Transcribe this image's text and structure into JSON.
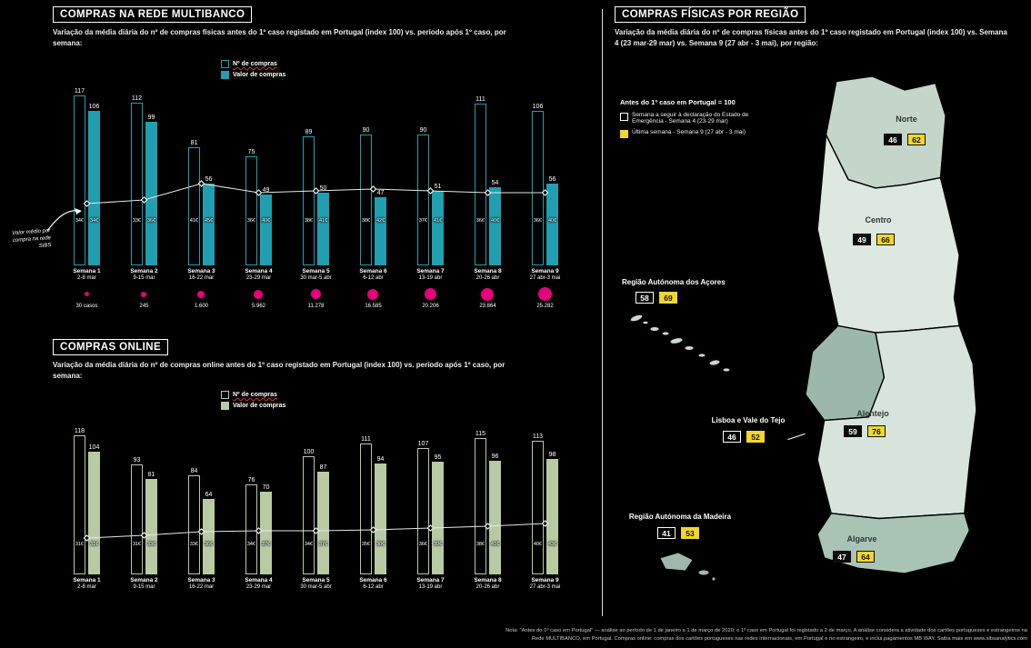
{
  "page": {
    "background": "#000000"
  },
  "colors": {
    "teal": "#1f9fb0",
    "sage": "#b8caa2",
    "yellow": "#f2d72b",
    "magenta": "#e5007d"
  },
  "chart_data": [
    {
      "id": "multibanco",
      "type": "bar",
      "title": "COMPRAS NA REDE MULTIBANCO",
      "subtitle": "Variação da média diária do nº de compras físicas antes do 1º caso registado em Portugal (index 100) vs. período após 1º caso, por semana:",
      "bar_color": "#1f9fb0",
      "ylim": [
        0,
        120
      ],
      "legend": [
        {
          "label": "Nº de compras",
          "style": "outline"
        },
        {
          "label": "Valor de compras",
          "style": "solid"
        }
      ],
      "categories": [
        "Semana 1|2-8 mar",
        "Semana 2|9-15 mar",
        "Semana 3|16-22 mar",
        "Semana 4|23-29 mar",
        "Semana 5|30 mar-5 abr",
        "Semana 6|6-12 abr",
        "Semana 7|13-19 abr",
        "Semana 8|20-26 abr",
        "Semana 9|27 abr-3 mai"
      ],
      "series": [
        {
          "name": "Nº de compras",
          "values": [
            117,
            112,
            81,
            75,
            89,
            90,
            90,
            111,
            106
          ]
        },
        {
          "name": "Valor de compras",
          "values": [
            106,
            99,
            56,
            49,
            50,
            47,
            51,
            54,
            56
          ]
        }
      ],
      "avg_ticket_eur": [
        [
          34,
          34
        ],
        [
          33,
          36
        ],
        [
          41,
          45
        ],
        [
          36,
          40
        ],
        [
          38,
          41
        ],
        [
          38,
          42
        ],
        [
          37,
          41
        ],
        [
          36,
          40
        ],
        [
          36,
          40
        ]
      ],
      "annotation": "Valor médio por compra na rede SIBS",
      "covid_cases": [
        "30 casos",
        "245",
        "1.600",
        "5.962",
        "11.278",
        "16.585",
        "20.206",
        "23.864",
        "25.282"
      ]
    },
    {
      "id": "online",
      "type": "bar",
      "title": "COMPRAS ONLINE",
      "subtitle": "Variação da média diária do nº de compras online antes do 1º caso registado em Portugal (index 100) vs. período após 1º caso, por semana:",
      "bar_color": "#b8caa2",
      "ylim": [
        0,
        120
      ],
      "legend": [
        {
          "label": "Nº de compras",
          "style": "outline"
        },
        {
          "label": "Valor de compras",
          "style": "solid"
        }
      ],
      "categories": [
        "Semana 1|2-8 mar",
        "Semana 2|9-15 mar",
        "Semana 3|16-22 mar",
        "Semana 4|23-29 mar",
        "Semana 5|30 mar-5 abr",
        "Semana 6|6-12 abr",
        "Semana 7|13-19 abr",
        "Semana 8|20-26 abr",
        "Semana 9|27 abr-3 mai"
      ],
      "series": [
        {
          "name": "Nº de compras",
          "values": [
            118,
            93,
            84,
            76,
            100,
            111,
            107,
            115,
            113
          ]
        },
        {
          "name": "Valor de compras",
          "values": [
            104,
            81,
            64,
            70,
            87,
            94,
            95,
            96,
            98
          ]
        }
      ],
      "avg_ticket_eur": [
        [
          31,
          31
        ],
        [
          31,
          33
        ],
        [
          33,
          36
        ],
        [
          34,
          37
        ],
        [
          34,
          37
        ],
        [
          35,
          38
        ],
        [
          36,
          39
        ],
        [
          38,
          41
        ],
        [
          40,
          43
        ]
      ]
    },
    {
      "id": "regioes",
      "type": "map",
      "title": "COMPRAS FÍSICAS POR REGIÃO",
      "subtitle": "Variação da média diária do nº de compras físicas antes do 1º caso registado em Portugal (index 100) vs. Semana 4 (23 mar-29 mar) vs. Semana 9 (27 abr - 3 mai), por região:",
      "legend_heading": "Antes do 1º caso em Portugal = 100",
      "legend": [
        {
          "label": "Semana a seguir à declaração do Estado de Emergência - Semana 4 (23-29 mar)",
          "style": "outline"
        },
        {
          "label": "Última semana - Semana 9 (27 abr - 3 mai)",
          "style": "yellow"
        }
      ],
      "regions": [
        {
          "name": "Norte",
          "semana4": 46,
          "semana9": 62
        },
        {
          "name": "Centro",
          "semana4": 49,
          "semana9": 66
        },
        {
          "name": "Região Autónoma dos Açores",
          "semana4": 58,
          "semana9": 69
        },
        {
          "name": "Lisboa e Vale do Tejo",
          "semana4": 46,
          "semana9": 52
        },
        {
          "name": "Alentejo",
          "semana4": 59,
          "semana9": 76
        },
        {
          "name": "Região Autónoma da Madeira",
          "semana4": 41,
          "semana9": 53
        },
        {
          "name": "Algarve",
          "semana4": 47,
          "semana9": 64
        }
      ]
    }
  ],
  "footer": {
    "note_lines": [
      "Nota: \"Antes do 1º caso em Portugal\" — análise ao período de 1 de janeiro a 1 de março de 2020; o 1º caso em Portugal foi registado a 2 de março. A análise considera a atividade dos cartões portugueses e estrangeiros na",
      "Rede MULTIBANCO, em Portugal. Compras online: compras dos cartões portugueses nas redes internacionais, em Portugal e no estrangeiro, e inclui pagamentos MB WAY. Saiba mais em www.sibsanalytics.com"
    ]
  }
}
